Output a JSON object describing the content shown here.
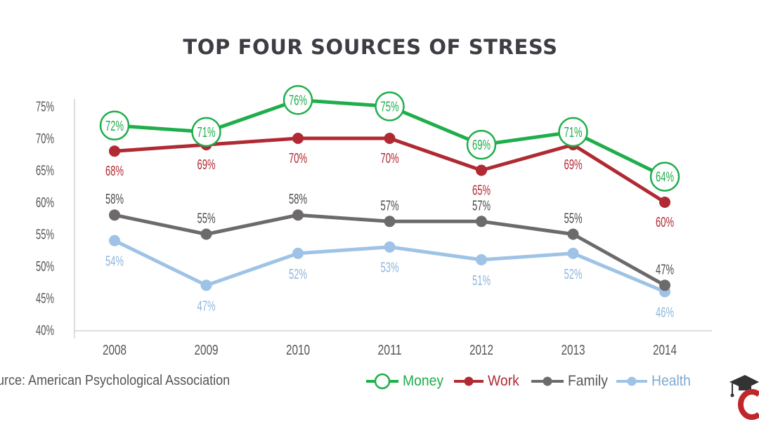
{
  "title": "TOP FOUR SOURCES OF STRESS",
  "source": "urce: American Psychological Association",
  "colors": {
    "money": "#1fae4b",
    "work": "#b02a33",
    "family": "#6d6a6b",
    "health": "#9ec3e6"
  },
  "chart_data": {
    "type": "line",
    "title": "TOP FOUR SOURCES OF STRESS",
    "xlabel": "",
    "ylabel": "",
    "categories": [
      "2008",
      "2009",
      "2010",
      "2011",
      "2012",
      "2013",
      "2014"
    ],
    "y_ticks": [
      "40%",
      "45%",
      "50%",
      "55%",
      "60%",
      "65%",
      "70%",
      "75%"
    ],
    "ylim": [
      40,
      76
    ],
    "grid": false,
    "legend": "bottom-right",
    "series": [
      {
        "name": "Money",
        "color": "#1fae4b",
        "values": [
          72,
          71,
          76,
          75,
          69,
          71,
          64
        ],
        "labels": [
          "72%",
          "71%",
          "76%",
          "75%",
          "69%",
          "71%",
          "64%"
        ]
      },
      {
        "name": "Work",
        "color": "#b02a33",
        "values": [
          68,
          69,
          70,
          70,
          65,
          69,
          60
        ],
        "labels": [
          "68%",
          "69%",
          "70%",
          "70%",
          "65%",
          "69%",
          "60%"
        ]
      },
      {
        "name": "Family",
        "color": "#6d6a6b",
        "values": [
          58,
          55,
          58,
          57,
          57,
          55,
          47
        ],
        "labels": [
          "58%",
          "55%",
          "58%",
          "57%",
          "57%",
          "55%",
          "47%"
        ]
      },
      {
        "name": "Health",
        "color": "#9ec3e6",
        "values": [
          54,
          47,
          52,
          53,
          51,
          52,
          46
        ],
        "labels": [
          "54%",
          "47%",
          "52%",
          "53%",
          "51%",
          "52%",
          "46%"
        ]
      }
    ]
  }
}
